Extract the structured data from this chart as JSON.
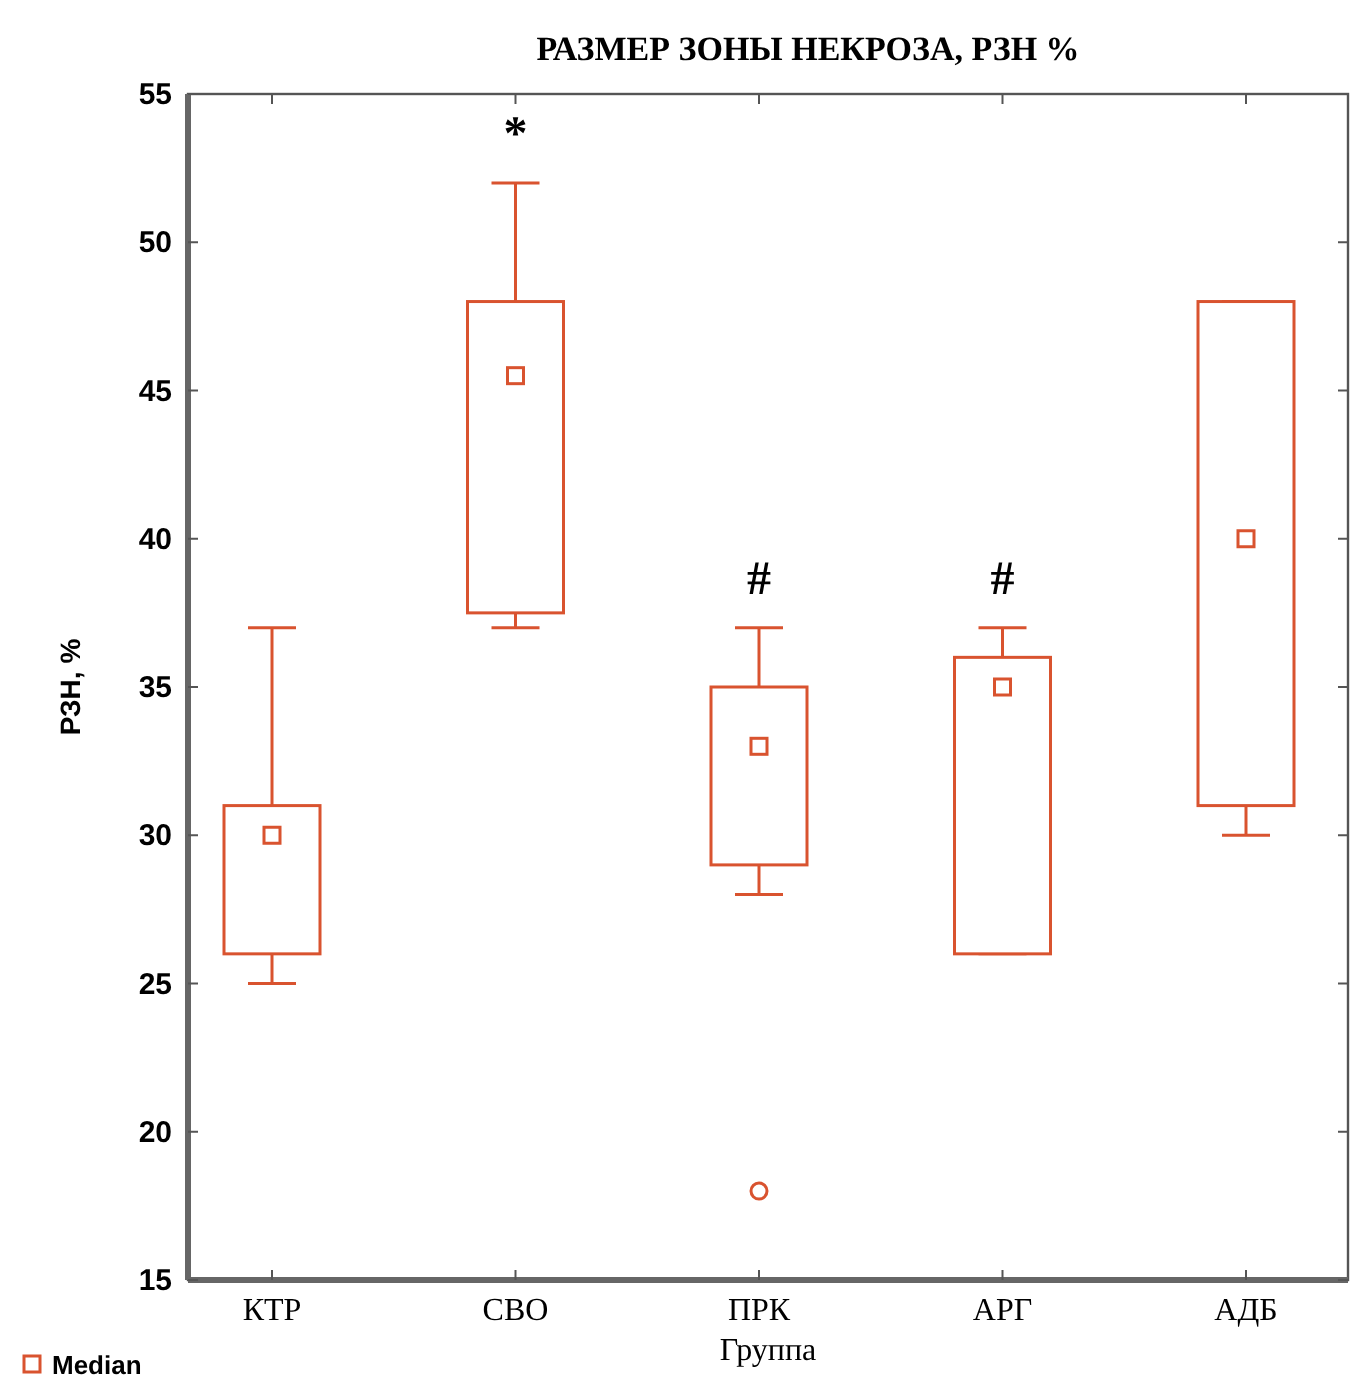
{
  "chart_data": {
    "type": "box",
    "title": "РАЗМЕР ЗОНЫ НЕКРОЗА, РЗН %",
    "xlabel": "Группа",
    "ylabel": "РЗН, %",
    "categories": [
      "КТР",
      "СВО",
      "ПРК",
      "АРГ",
      "АДБ"
    ],
    "series": [
      {
        "name": "Median",
        "color": "#d9532f",
        "boxes": [
          {
            "low": 25,
            "q1": 26,
            "median": 30,
            "q3": 31,
            "high": 37
          },
          {
            "low": 37,
            "q1": 37.5,
            "median": 45.5,
            "q3": 48,
            "high": 52
          },
          {
            "low": 28,
            "q1": 29,
            "median": 33,
            "q3": 35,
            "high": 37,
            "outliers": [
              18
            ]
          },
          {
            "low": 26,
            "q1": 26,
            "median": 35,
            "q3": 36,
            "high": 37
          },
          {
            "low": 30,
            "q1": 31,
            "median": 40,
            "q3": 48,
            "high": 48
          }
        ]
      }
    ],
    "ylim": [
      15,
      55
    ],
    "yticks": [
      15,
      20,
      25,
      30,
      35,
      40,
      45,
      50,
      55
    ],
    "marker": "square",
    "legend": "bottom left",
    "grid": false,
    "annotations": [
      {
        "text": "*",
        "x": "СВО",
        "y": 52
      },
      {
        "text": "#",
        "x": "ПРК",
        "y": 37
      },
      {
        "text": "#",
        "x": "АРГ",
        "y": 37
      }
    ]
  }
}
